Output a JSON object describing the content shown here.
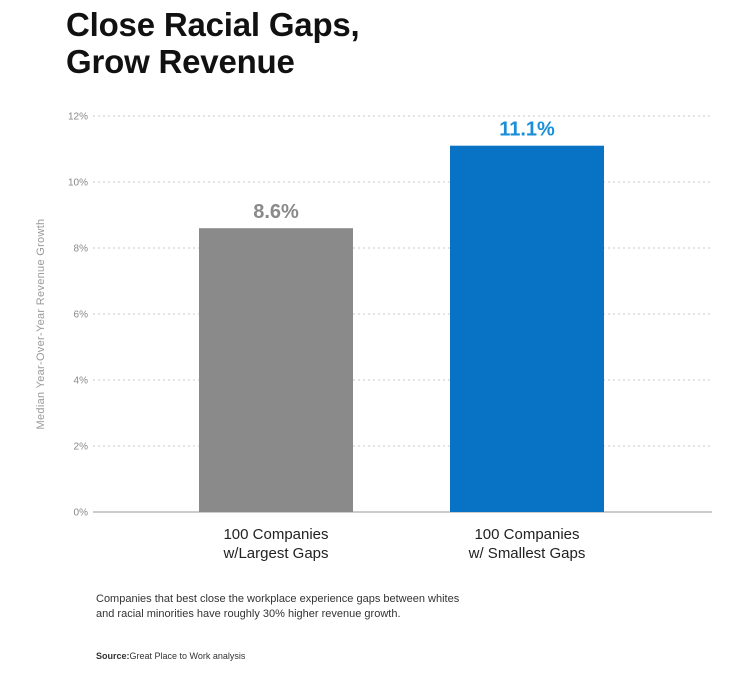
{
  "title": {
    "line1": "Close Racial Gaps,",
    "line2": "Grow Revenue"
  },
  "chart_data": {
    "type": "bar",
    "title": "Close Racial Gaps, Grow Revenue",
    "ylabel": "Median Year-Over-Year Revenue Growth",
    "xlabel": "",
    "ylim": [
      0,
      12
    ],
    "y_ticks": [
      0,
      2,
      4,
      6,
      8,
      10,
      12
    ],
    "y_tick_labels": [
      "0%",
      "2%",
      "4%",
      "6%",
      "8%",
      "10%",
      "12%"
    ],
    "grid": true,
    "categories": [
      [
        "100 Companies",
        "w/Largest Gaps"
      ],
      [
        "100 Companies",
        "w/ Smallest Gaps"
      ]
    ],
    "values": [
      8.6,
      11.1
    ],
    "data_labels": [
      "8.6%",
      "11.1%"
    ],
    "colors": [
      "#8a8a8a",
      "#0873c4"
    ],
    "label_colors": [
      "#8a8a8a",
      "#1a8fd8"
    ]
  },
  "caption": {
    "line1": "Companies that best close the workplace experience gaps between whites",
    "line2": "and racial minorities have roughly 30% higher revenue growth."
  },
  "source": {
    "label": "Source:",
    "text": "Great Place to Work analysis"
  },
  "colors": {
    "grid": "#c8c8c8",
    "axis_text": "#888888",
    "category_text": "#222222"
  }
}
